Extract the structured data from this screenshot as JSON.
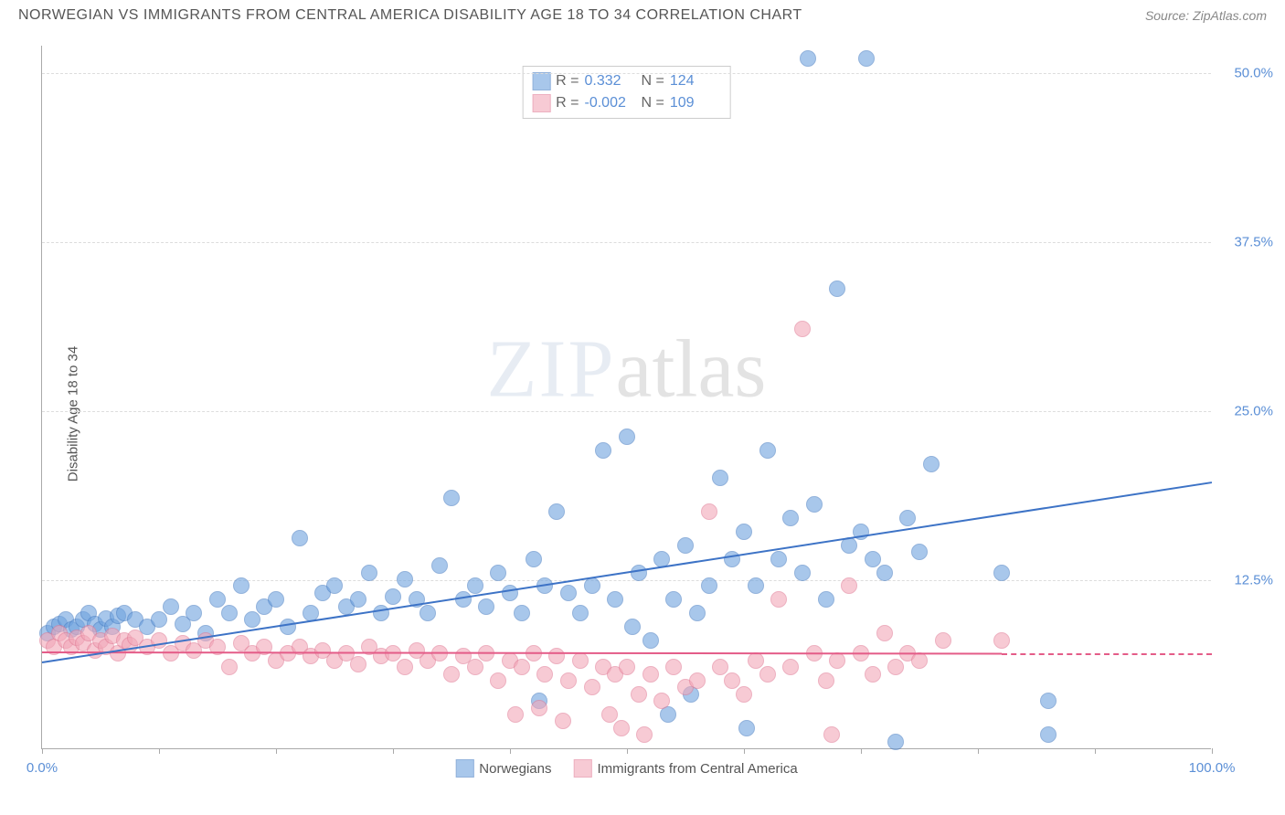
{
  "header": {
    "title": "NORWEGIAN VS IMMIGRANTS FROM CENTRAL AMERICA DISABILITY AGE 18 TO 34 CORRELATION CHART",
    "source": "Source: ZipAtlas.com"
  },
  "chart": {
    "type": "scatter",
    "ylabel": "Disability Age 18 to 34",
    "xlim": [
      0,
      100
    ],
    "ylim": [
      0,
      52
    ],
    "xtick_labels": {
      "min": "0.0%",
      "max": "100.0%"
    },
    "xtick_positions": [
      0,
      10,
      20,
      30,
      40,
      50,
      60,
      70,
      80,
      90,
      100
    ],
    "yticks": [
      12.5,
      25.0,
      37.5,
      50.0
    ],
    "ytick_labels": [
      "12.5%",
      "25.0%",
      "37.5%",
      "50.0%"
    ],
    "grid_color": "#dddddd",
    "axis_color": "#aaaaaa",
    "background_color": "#ffffff",
    "marker_radius": 9,
    "marker_fill_opacity": 0.35,
    "marker_stroke_opacity": 0.8,
    "series": [
      {
        "name": "Norwegians",
        "color": "#6fa3df",
        "stroke": "#4a7fc4",
        "line_color": "#3d73c6",
        "R": "0.332",
        "N": "124",
        "trend": {
          "x1": 0,
          "y1": 6.5,
          "x2": 100,
          "y2": 19.8
        },
        "points": [
          [
            0.5,
            8.5
          ],
          [
            1,
            9
          ],
          [
            1.5,
            9.2
          ],
          [
            2,
            9.5
          ],
          [
            2.5,
            8.8
          ],
          [
            3,
            9.0
          ],
          [
            3.5,
            9.5
          ],
          [
            4,
            10
          ],
          [
            4.5,
            9.2
          ],
          [
            5,
            8.8
          ],
          [
            5.5,
            9.6
          ],
          [
            6,
            9.0
          ],
          [
            6.5,
            9.8
          ],
          [
            7,
            10
          ],
          [
            8,
            9.5
          ],
          [
            9,
            9.0
          ],
          [
            10,
            9.5
          ],
          [
            11,
            10.5
          ],
          [
            12,
            9.2
          ],
          [
            13,
            10
          ],
          [
            14,
            8.5
          ],
          [
            15,
            11
          ],
          [
            16,
            10
          ],
          [
            17,
            12
          ],
          [
            18,
            9.5
          ],
          [
            19,
            10.5
          ],
          [
            20,
            11
          ],
          [
            21,
            9
          ],
          [
            22,
            15.5
          ],
          [
            23,
            10
          ],
          [
            24,
            11.5
          ],
          [
            25,
            12
          ],
          [
            26,
            10.5
          ],
          [
            27,
            11
          ],
          [
            28,
            13
          ],
          [
            29,
            10
          ],
          [
            30,
            11.2
          ],
          [
            31,
            12.5
          ],
          [
            32,
            11
          ],
          [
            33,
            10
          ],
          [
            34,
            13.5
          ],
          [
            35,
            18.5
          ],
          [
            36,
            11
          ],
          [
            37,
            12
          ],
          [
            38,
            10.5
          ],
          [
            39,
            13
          ],
          [
            40,
            11.5
          ],
          [
            41,
            10
          ],
          [
            42,
            14
          ],
          [
            42.5,
            3.5
          ],
          [
            43,
            12
          ],
          [
            44,
            17.5
          ],
          [
            45,
            11.5
          ],
          [
            46,
            10
          ],
          [
            47,
            12
          ],
          [
            48,
            22
          ],
          [
            49,
            11
          ],
          [
            50,
            23
          ],
          [
            50.5,
            9
          ],
          [
            51,
            13
          ],
          [
            52,
            8
          ],
          [
            53,
            14
          ],
          [
            53.5,
            2.5
          ],
          [
            54,
            11
          ],
          [
            55,
            15
          ],
          [
            55.5,
            4
          ],
          [
            56,
            10
          ],
          [
            57,
            12
          ],
          [
            58,
            20
          ],
          [
            59,
            14
          ],
          [
            60,
            16
          ],
          [
            60.2,
            1.5
          ],
          [
            61,
            12
          ],
          [
            62,
            22
          ],
          [
            63,
            14
          ],
          [
            64,
            17
          ],
          [
            65,
            13
          ],
          [
            65.5,
            51
          ],
          [
            66,
            18
          ],
          [
            67,
            11
          ],
          [
            68,
            34
          ],
          [
            69,
            15
          ],
          [
            70,
            16
          ],
          [
            70.5,
            51
          ],
          [
            71,
            14
          ],
          [
            72,
            13
          ],
          [
            73,
            0.5
          ],
          [
            74,
            17
          ],
          [
            75,
            14.5
          ],
          [
            76,
            21
          ],
          [
            82,
            13
          ],
          [
            86,
            3.5
          ],
          [
            86,
            1
          ]
        ]
      },
      {
        "name": "Immigrants from Central America",
        "color": "#f2a7b8",
        "stroke": "#e27d97",
        "line_color": "#e45c88",
        "R": "-0.002",
        "N": "109",
        "trend": {
          "x1": 0,
          "y1": 7.2,
          "x2": 82,
          "y2": 7.1
        },
        "trend_ext": {
          "x1": 82,
          "y1": 7.1,
          "x2": 100,
          "y2": 7.1
        },
        "points": [
          [
            0.5,
            8
          ],
          [
            1,
            7.5
          ],
          [
            1.5,
            8.5
          ],
          [
            2,
            8
          ],
          [
            2.5,
            7.5
          ],
          [
            3,
            8.2
          ],
          [
            3.5,
            7.8
          ],
          [
            4,
            8.5
          ],
          [
            4.5,
            7.2
          ],
          [
            5,
            8
          ],
          [
            5.5,
            7.5
          ],
          [
            6,
            8.3
          ],
          [
            6.5,
            7
          ],
          [
            7,
            8
          ],
          [
            7.5,
            7.6
          ],
          [
            8,
            8.2
          ],
          [
            9,
            7.5
          ],
          [
            10,
            8
          ],
          [
            11,
            7
          ],
          [
            12,
            7.8
          ],
          [
            13,
            7.2
          ],
          [
            14,
            8
          ],
          [
            15,
            7.5
          ],
          [
            16,
            6
          ],
          [
            17,
            7.8
          ],
          [
            18,
            7
          ],
          [
            19,
            7.5
          ],
          [
            20,
            6.5
          ],
          [
            21,
            7
          ],
          [
            22,
            7.5
          ],
          [
            23,
            6.8
          ],
          [
            24,
            7.2
          ],
          [
            25,
            6.5
          ],
          [
            26,
            7
          ],
          [
            27,
            6.2
          ],
          [
            28,
            7.5
          ],
          [
            29,
            6.8
          ],
          [
            30,
            7
          ],
          [
            31,
            6
          ],
          [
            32,
            7.2
          ],
          [
            33,
            6.5
          ],
          [
            34,
            7
          ],
          [
            35,
            5.5
          ],
          [
            36,
            6.8
          ],
          [
            37,
            6
          ],
          [
            38,
            7
          ],
          [
            39,
            5
          ],
          [
            40,
            6.5
          ],
          [
            40.5,
            2.5
          ],
          [
            41,
            6
          ],
          [
            42,
            7
          ],
          [
            42.5,
            3
          ],
          [
            43,
            5.5
          ],
          [
            44,
            6.8
          ],
          [
            44.5,
            2
          ],
          [
            45,
            5
          ],
          [
            46,
            6.5
          ],
          [
            47,
            4.5
          ],
          [
            48,
            6
          ],
          [
            48.5,
            2.5
          ],
          [
            49,
            5.5
          ],
          [
            49.5,
            1.5
          ],
          [
            50,
            6
          ],
          [
            51,
            4
          ],
          [
            51.5,
            1
          ],
          [
            52,
            5.5
          ],
          [
            53,
            3.5
          ],
          [
            54,
            6
          ],
          [
            55,
            4.5
          ],
          [
            56,
            5
          ],
          [
            57,
            17.5
          ],
          [
            58,
            6
          ],
          [
            59,
            5
          ],
          [
            60,
            4
          ],
          [
            61,
            6.5
          ],
          [
            62,
            5.5
          ],
          [
            63,
            11
          ],
          [
            64,
            6
          ],
          [
            65,
            31
          ],
          [
            66,
            7
          ],
          [
            67,
            5
          ],
          [
            67.5,
            1
          ],
          [
            68,
            6.5
          ],
          [
            69,
            12
          ],
          [
            70,
            7
          ],
          [
            71,
            5.5
          ],
          [
            72,
            8.5
          ],
          [
            73,
            6
          ],
          [
            74,
            7
          ],
          [
            75,
            6.5
          ],
          [
            77,
            8
          ],
          [
            82,
            8
          ]
        ]
      }
    ],
    "legend": {
      "series1_label": "Norwegians",
      "series2_label": "Immigrants from Central America"
    },
    "watermark": {
      "zip": "ZIP",
      "atlas": "atlas"
    }
  }
}
